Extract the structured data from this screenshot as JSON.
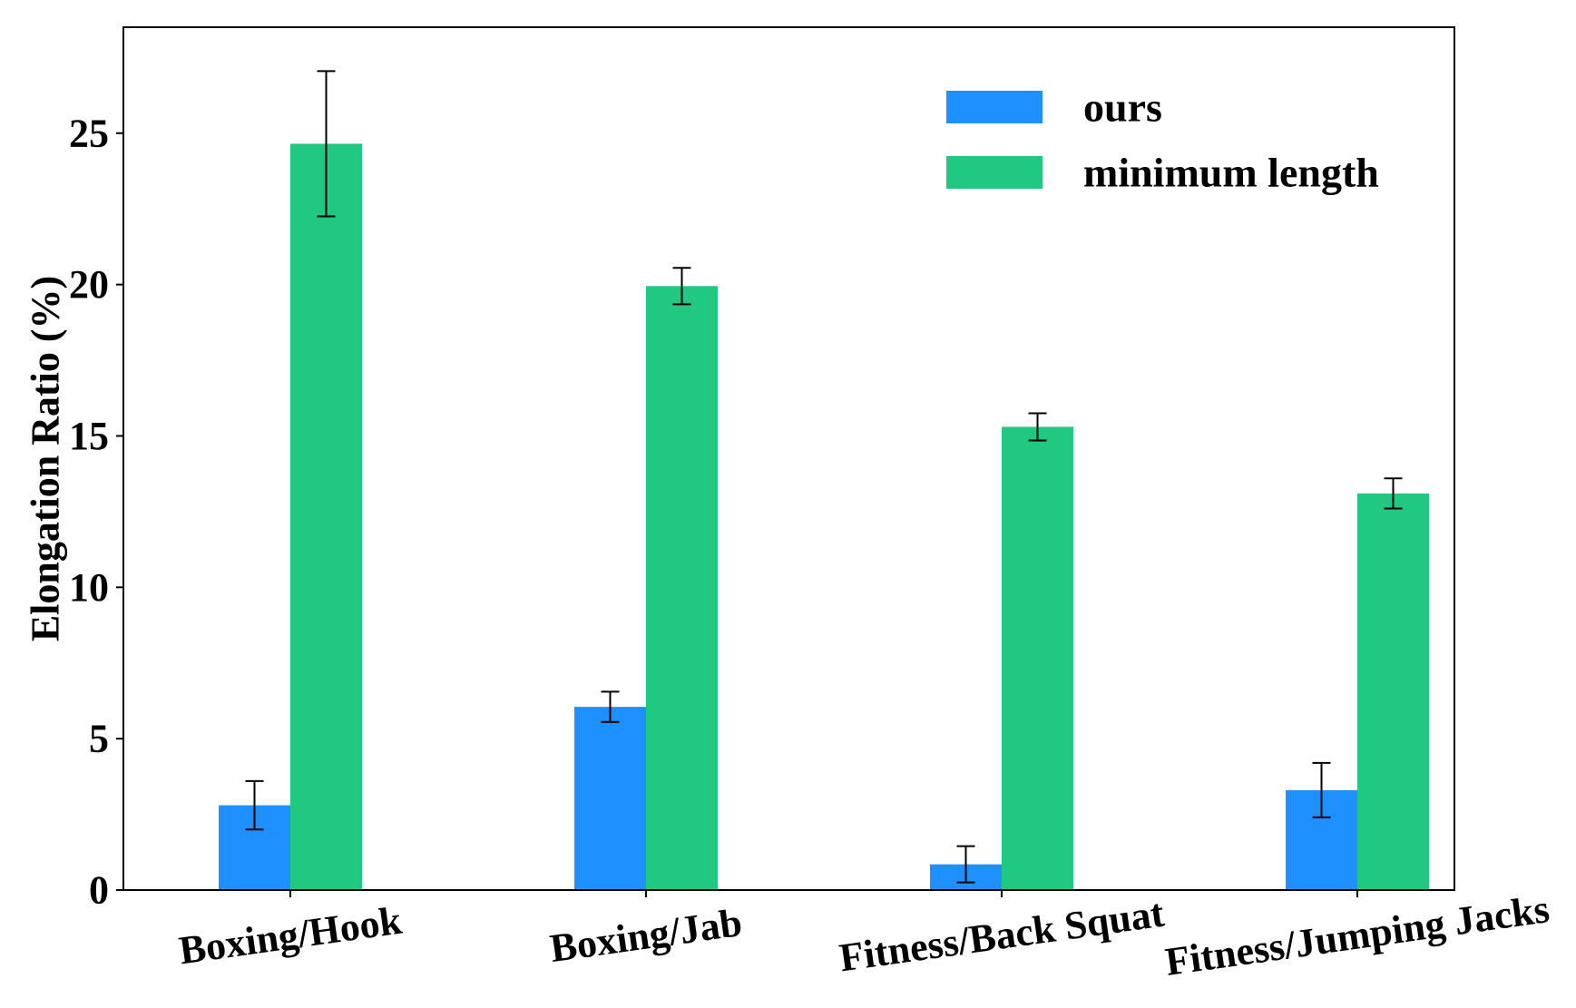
{
  "chart_data": {
    "type": "bar",
    "title": "",
    "xlabel": "",
    "ylabel": "Elongation Ratio (%)",
    "ylim": [
      0,
      28.5
    ],
    "yticks": [
      0,
      5,
      10,
      15,
      20,
      25
    ],
    "ytick_labels": [
      "0",
      "5",
      "10",
      "15",
      "20",
      "25"
    ],
    "categories": [
      "Boxing/Hook",
      "Boxing/Jab",
      "Fitness/Back Squat",
      "Fitness/Jumping Jacks"
    ],
    "series": [
      {
        "name": "ours",
        "color": "#1e90ff",
        "values": [
          2.8,
          6.05,
          0.85,
          3.3
        ],
        "errors": [
          0.8,
          0.5,
          0.6,
          0.9
        ]
      },
      {
        "name": "minimum length",
        "color": "#20c882",
        "values": [
          24.65,
          19.95,
          15.3,
          13.1
        ],
        "errors": [
          2.4,
          0.6,
          0.45,
          0.5
        ]
      }
    ],
    "legend_position": "top-right",
    "grid": false,
    "error_bars": true
  }
}
